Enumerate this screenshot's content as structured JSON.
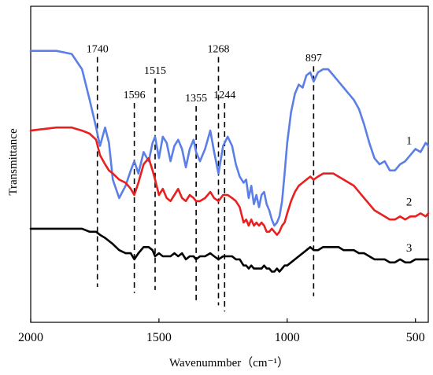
{
  "chart_data": {
    "type": "line",
    "title": "",
    "xlabel": "Wavenummber（cm⁻¹）",
    "ylabel": "Transmittance",
    "xlim": [
      2000,
      450
    ],
    "x_reversed": true,
    "x_ticks": [
      2000,
      1500,
      1000,
      500
    ],
    "x_tick_labels": [
      "2000",
      "1500",
      "1000",
      "500"
    ],
    "y_ticks_shown": false,
    "ylim": [
      0,
      100
    ],
    "grid": false,
    "legend": "none",
    "series": [
      {
        "label": "1",
        "color": "#5b7fe6",
        "x": [
          2000,
          1900,
          1840,
          1800,
          1770,
          1745,
          1730,
          1710,
          1695,
          1680,
          1655,
          1630,
          1610,
          1596,
          1580,
          1560,
          1540,
          1525,
          1515,
          1500,
          1485,
          1470,
          1455,
          1440,
          1425,
          1410,
          1395,
          1380,
          1365,
          1355,
          1340,
          1320,
          1300,
          1285,
          1268,
          1250,
          1232,
          1215,
          1200,
          1185,
          1170,
          1160,
          1150,
          1140,
          1130,
          1120,
          1110,
          1100,
          1090,
          1080,
          1070,
          1060,
          1050,
          1040,
          1030,
          1020,
          1010,
          1000,
          985,
          970,
          955,
          940,
          925,
          910,
          897,
          880,
          860,
          840,
          820,
          800,
          780,
          760,
          740,
          720,
          700,
          680,
          660,
          640,
          620,
          600,
          580,
          560,
          540,
          520,
          500,
          480,
          460,
          450
        ],
        "y": [
          87,
          87,
          86,
          81,
          71,
          62,
          56,
          62,
          57,
          45,
          39,
          43,
          48,
          51,
          47,
          54,
          51,
          57,
          59,
          52,
          59,
          57,
          51,
          56,
          58,
          55,
          49,
          55,
          58,
          54,
          51,
          55,
          61,
          54,
          47,
          56,
          59,
          56,
          50,
          46,
          44,
          45,
          39,
          43,
          37,
          40,
          36,
          40,
          41,
          37,
          35,
          32,
          30,
          31,
          33,
          38,
          47,
          57,
          67,
          73,
          76,
          75,
          79,
          80,
          77,
          80,
          81,
          81,
          79,
          77,
          75,
          73,
          71,
          68,
          63,
          57,
          52,
          50,
          51,
          48,
          48,
          50,
          51,
          53,
          55,
          54,
          57,
          56
        ]
      },
      {
        "label": "2",
        "color": "#e82020",
        "x": [
          2000,
          1900,
          1840,
          1800,
          1770,
          1745,
          1730,
          1710,
          1695,
          1680,
          1655,
          1630,
          1610,
          1596,
          1580,
          1560,
          1540,
          1525,
          1515,
          1500,
          1485,
          1470,
          1455,
          1440,
          1425,
          1410,
          1395,
          1380,
          1365,
          1355,
          1340,
          1320,
          1300,
          1285,
          1268,
          1250,
          1232,
          1215,
          1200,
          1185,
          1170,
          1160,
          1150,
          1140,
          1130,
          1120,
          1110,
          1100,
          1090,
          1080,
          1070,
          1060,
          1050,
          1040,
          1030,
          1020,
          1010,
          1000,
          985,
          970,
          955,
          940,
          925,
          910,
          897,
          880,
          860,
          840,
          820,
          800,
          780,
          760,
          740,
          720,
          700,
          680,
          660,
          640,
          620,
          600,
          580,
          560,
          540,
          520,
          500,
          480,
          460,
          450
        ],
        "y": [
          61,
          62,
          62,
          61,
          60,
          58,
          53,
          50,
          48,
          47,
          45,
          44,
          42,
          40,
          44,
          50,
          52,
          48,
          45,
          40,
          42,
          39,
          38,
          40,
          42,
          39,
          38,
          40,
          39,
          38,
          38,
          39,
          41,
          39,
          38,
          40,
          40,
          39,
          38,
          36,
          31,
          32,
          30,
          32,
          30,
          31,
          30,
          31,
          30,
          28,
          28,
          29,
          28,
          27,
          28,
          30,
          31,
          34,
          38,
          41,
          43,
          44,
          45,
          46,
          45,
          46,
          47,
          47,
          47,
          46,
          45,
          44,
          43,
          41,
          39,
          37,
          35,
          34,
          33,
          32,
          32,
          33,
          32,
          33,
          33,
          34,
          33,
          34
        ]
      },
      {
        "label": "3",
        "color": "#000000",
        "x": [
          2000,
          1900,
          1840,
          1800,
          1770,
          1745,
          1730,
          1710,
          1695,
          1680,
          1655,
          1630,
          1610,
          1596,
          1580,
          1560,
          1540,
          1525,
          1515,
          1500,
          1485,
          1470,
          1455,
          1440,
          1425,
          1410,
          1395,
          1380,
          1365,
          1355,
          1340,
          1320,
          1300,
          1285,
          1268,
          1250,
          1232,
          1215,
          1200,
          1185,
          1170,
          1160,
          1150,
          1140,
          1130,
          1120,
          1110,
          1100,
          1090,
          1080,
          1070,
          1060,
          1050,
          1040,
          1030,
          1020,
          1010,
          1000,
          985,
          970,
          955,
          940,
          925,
          910,
          897,
          880,
          860,
          840,
          820,
          800,
          780,
          760,
          740,
          720,
          700,
          680,
          660,
          640,
          620,
          600,
          580,
          560,
          540,
          520,
          500,
          480,
          460,
          450
        ],
        "y": [
          29,
          29,
          29,
          29,
          28,
          28,
          27,
          26,
          25,
          24,
          22,
          21,
          21,
          19,
          21,
          23,
          23,
          22,
          20,
          21,
          20,
          20,
          20,
          21,
          20,
          21,
          19,
          20,
          20,
          19,
          20,
          20,
          21,
          20,
          19,
          20,
          20,
          20,
          19,
          19,
          17,
          17,
          16,
          17,
          16,
          16,
          16,
          16,
          17,
          16,
          16,
          15,
          15,
          16,
          15,
          16,
          17,
          17,
          18,
          19,
          20,
          21,
          22,
          23,
          22,
          22,
          23,
          23,
          23,
          23,
          22,
          22,
          22,
          21,
          21,
          20,
          19,
          19,
          19,
          18,
          18,
          19,
          18,
          18,
          19,
          19,
          19,
          19
        ]
      }
    ],
    "reference_lines": [
      {
        "x": 1740,
        "label": "1740",
        "y_top": 85,
        "y_bottom": 10
      },
      {
        "x": 1596,
        "label": "1596",
        "y_top": 70,
        "y_bottom": 8
      },
      {
        "x": 1515,
        "label": "1515",
        "y_top": 78,
        "y_bottom": 9
      },
      {
        "x": 1355,
        "label": "1355",
        "y_top": 69,
        "y_bottom": 5
      },
      {
        "x": 1268,
        "label": "1268",
        "y_top": 85,
        "y_bottom": 4
      },
      {
        "x": 1244,
        "label": "1244",
        "y_top": 70,
        "y_bottom": 2
      },
      {
        "x": 897,
        "label": "897",
        "y_top": 82,
        "y_bottom": 7
      }
    ],
    "series_label_x": 525
  }
}
